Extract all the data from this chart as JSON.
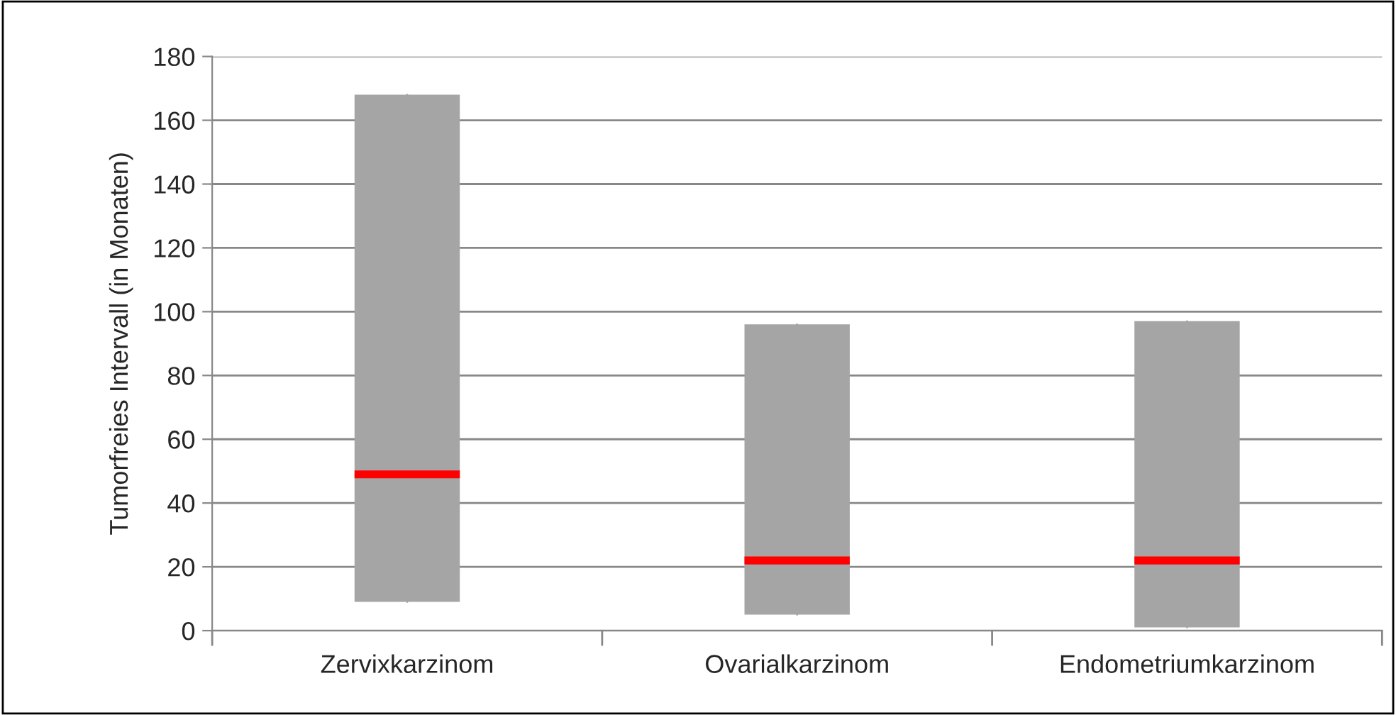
{
  "chart_data": {
    "type": "box",
    "ylabel": "Tumorfreies Intervall (in Monaten)",
    "categories": [
      "Zervixkarzinom",
      "Ovarialkarzinom",
      "Endometriumkarzinom"
    ],
    "series": [
      {
        "color": "#a5a5a5",
        "boxes": [
          {
            "low": 9,
            "q1": 9,
            "median": 49,
            "q3": 168,
            "high": 168
          },
          {
            "low": 5,
            "q1": 5,
            "median": 22,
            "q3": 96,
            "high": 96
          },
          {
            "low": 1,
            "q1": 1,
            "median": 22,
            "q3": 97,
            "high": 97
          }
        ]
      }
    ],
    "ylim": [
      0,
      180
    ],
    "yticks": [
      0,
      20,
      40,
      60,
      80,
      100,
      120,
      140,
      160,
      180
    ],
    "grid": "y"
  }
}
